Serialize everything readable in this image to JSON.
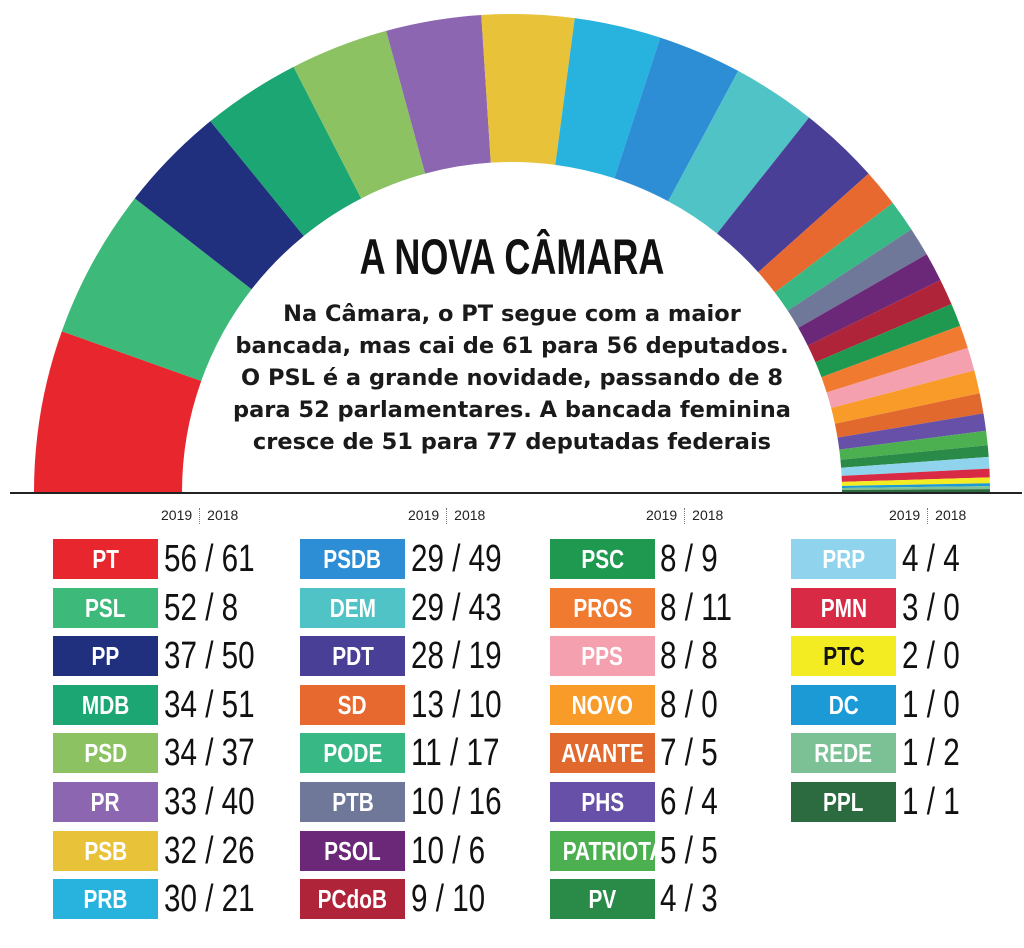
{
  "title": "A NOVA CÂMARA",
  "description_lines": [
    "Na Câmara, o PT segue com a maior",
    "bancada, mas cai de 61 para 56 deputados.",
    "O PSL é a grande novidade, passando de 8",
    "para 52 parlamentares. A bancada feminina",
    "cresce de 51 para 77 deputadas federais"
  ],
  "year_labels": {
    "current": "2019",
    "previous": "2018"
  },
  "chart_data": {
    "type": "pie",
    "variant": "parliament-semicircle",
    "title": "A NOVA CÂMARA",
    "series": [
      {
        "party": "PT",
        "seats_2019": 56,
        "seats_2018": 61,
        "color": "#e8262d"
      },
      {
        "party": "PSL",
        "seats_2019": 52,
        "seats_2018": 8,
        "color": "#3db97a"
      },
      {
        "party": "PP",
        "seats_2019": 37,
        "seats_2018": 50,
        "color": "#20307f"
      },
      {
        "party": "MDB",
        "seats_2019": 34,
        "seats_2018": 51,
        "color": "#1ba673"
      },
      {
        "party": "PSD",
        "seats_2019": 34,
        "seats_2018": 37,
        "color": "#8dc263"
      },
      {
        "party": "PR",
        "seats_2019": 33,
        "seats_2018": 40,
        "color": "#8d66b2"
      },
      {
        "party": "PSB",
        "seats_2019": 32,
        "seats_2018": 26,
        "color": "#e8c238"
      },
      {
        "party": "PRB",
        "seats_2019": 30,
        "seats_2018": 21,
        "color": "#27b3dd"
      },
      {
        "party": "PSDB",
        "seats_2019": 29,
        "seats_2018": 49,
        "color": "#2e8ed5"
      },
      {
        "party": "DEM",
        "seats_2019": 29,
        "seats_2018": 43,
        "color": "#4fc3c5"
      },
      {
        "party": "PDT",
        "seats_2019": 28,
        "seats_2018": 19,
        "color": "#4a3f97"
      },
      {
        "party": "SD",
        "seats_2019": 13,
        "seats_2018": 10,
        "color": "#e8692f"
      },
      {
        "party": "PODE",
        "seats_2019": 11,
        "seats_2018": 17,
        "color": "#38b884"
      },
      {
        "party": "PTB",
        "seats_2019": 10,
        "seats_2018": 16,
        "color": "#6f7898"
      },
      {
        "party": "PSOL",
        "seats_2019": 10,
        "seats_2018": 6,
        "color": "#6c2878"
      },
      {
        "party": "PCdoB",
        "seats_2019": 9,
        "seats_2018": 10,
        "color": "#b0243a"
      },
      {
        "party": "PSC",
        "seats_2019": 8,
        "seats_2018": 9,
        "color": "#1f9950"
      },
      {
        "party": "PROS",
        "seats_2019": 8,
        "seats_2018": 11,
        "color": "#f07a30"
      },
      {
        "party": "PPS",
        "seats_2019": 8,
        "seats_2018": 8,
        "color": "#f4a0ae"
      },
      {
        "party": "NOVO",
        "seats_2019": 8,
        "seats_2018": 0,
        "color": "#f89b28"
      },
      {
        "party": "AVANTE",
        "seats_2019": 7,
        "seats_2018": 5,
        "color": "#e2692d"
      },
      {
        "party": "PHS",
        "seats_2019": 6,
        "seats_2018": 4,
        "color": "#6750a8"
      },
      {
        "party": "PATRIOTA",
        "seats_2019": 5,
        "seats_2018": 5,
        "color": "#4caf50"
      },
      {
        "party": "PV",
        "seats_2019": 4,
        "seats_2018": 3,
        "color": "#2a8a48"
      },
      {
        "party": "PRP",
        "seats_2019": 4,
        "seats_2018": 4,
        "color": "#8fd3ec"
      },
      {
        "party": "PMN",
        "seats_2019": 3,
        "seats_2018": 0,
        "color": "#d92a45"
      },
      {
        "party": "PTC",
        "seats_2019": 2,
        "seats_2018": 0,
        "color": "#f4ec23"
      },
      {
        "party": "DC",
        "seats_2019": 1,
        "seats_2018": 0,
        "color": "#1c9ad6"
      },
      {
        "party": "REDE",
        "seats_2019": 1,
        "seats_2018": 2,
        "color": "#7cc195"
      },
      {
        "party": "PPL",
        "seats_2019": 1,
        "seats_2018": 1,
        "color": "#2c6b40"
      }
    ]
  }
}
